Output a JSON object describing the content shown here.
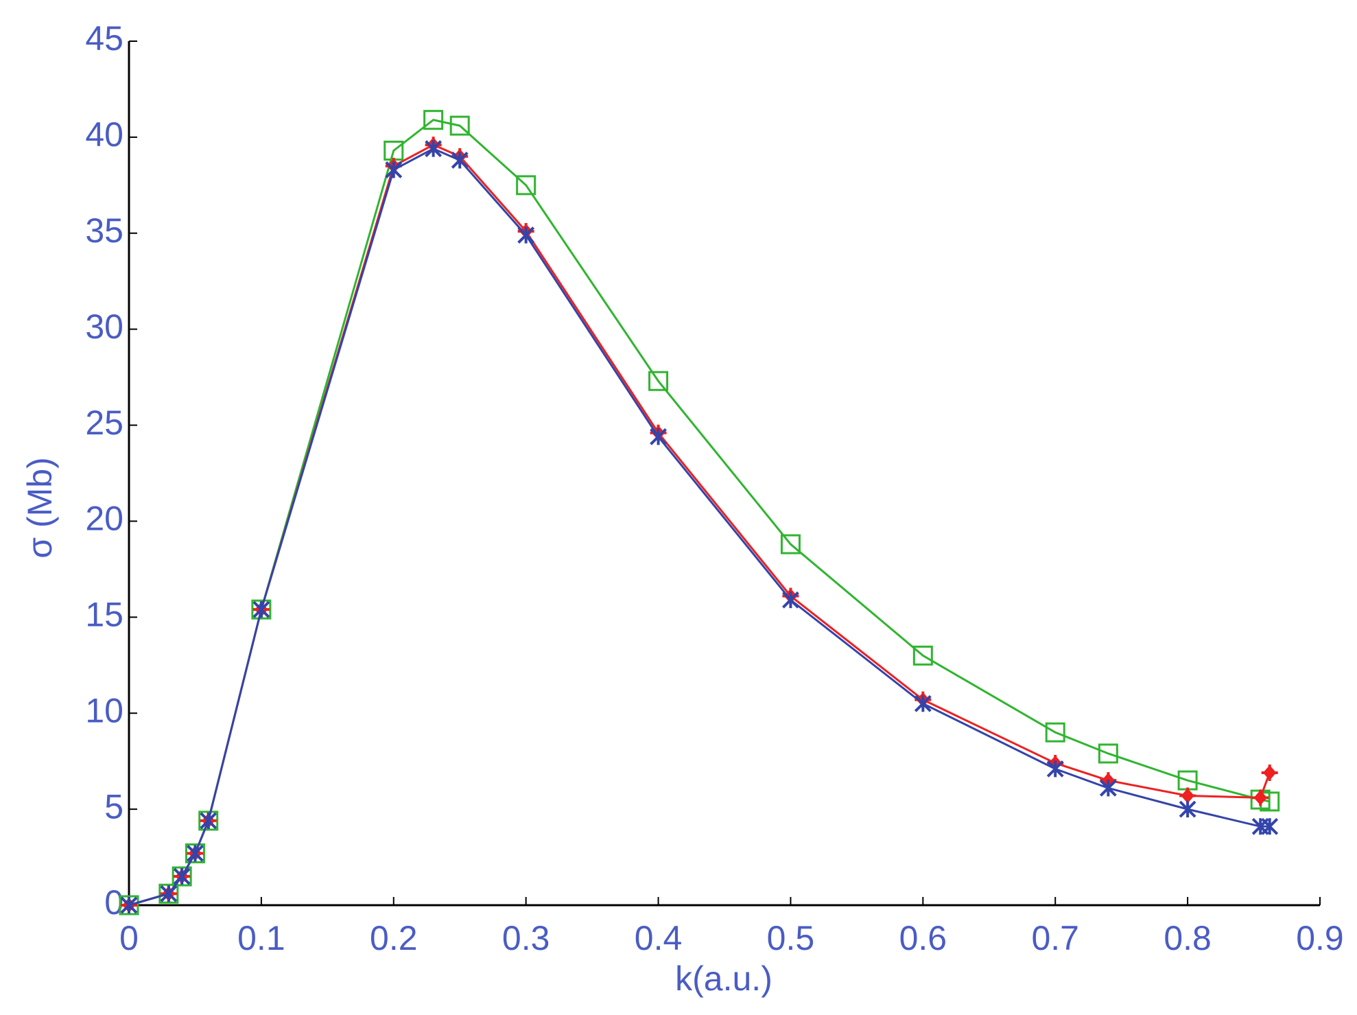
{
  "chart_data": {
    "type": "line",
    "x": [
      0,
      0.03,
      0.04,
      0.05,
      0.06,
      0.1,
      0.2,
      0.23,
      0.25,
      0.3,
      0.4,
      0.5,
      0.6,
      0.7,
      0.74,
      0.8,
      0.855,
      0.862
    ],
    "series": [
      {
        "color": "#2fb52f",
        "marker": "square",
        "values": [
          0,
          0.6,
          1.5,
          2.7,
          4.4,
          15.4,
          39.3,
          40.9,
          40.6,
          37.5,
          27.3,
          18.8,
          13.0,
          9.0,
          7.9,
          6.5,
          5.5,
          5.4
        ]
      },
      {
        "color": "#ee2020",
        "marker": "plus",
        "values": [
          0,
          0.6,
          1.5,
          2.7,
          4.4,
          15.4,
          38.5,
          39.6,
          39.0,
          35.1,
          24.6,
          16.1,
          10.7,
          7.4,
          6.5,
          5.7,
          5.6,
          6.9
        ]
      },
      {
        "color": "#3344aa",
        "marker": "cross",
        "values": [
          0,
          0.6,
          1.5,
          2.7,
          4.4,
          15.4,
          38.3,
          39.4,
          38.8,
          34.9,
          24.4,
          15.9,
          10.5,
          7.1,
          6.1,
          5.0,
          4.1,
          4.1
        ]
      }
    ],
    "xlabel": "k(a.u.)",
    "ylabel": "σ (Mb)",
    "xlim": [
      0,
      0.9
    ],
    "xticks": [
      0,
      0.1,
      0.2,
      0.3,
      0.4,
      0.5,
      0.6,
      0.7,
      0.8,
      0.9
    ],
    "ylim": [
      0,
      45
    ],
    "yticks": [
      0,
      5,
      10,
      15,
      20,
      25,
      30,
      35,
      40,
      45
    ]
  }
}
